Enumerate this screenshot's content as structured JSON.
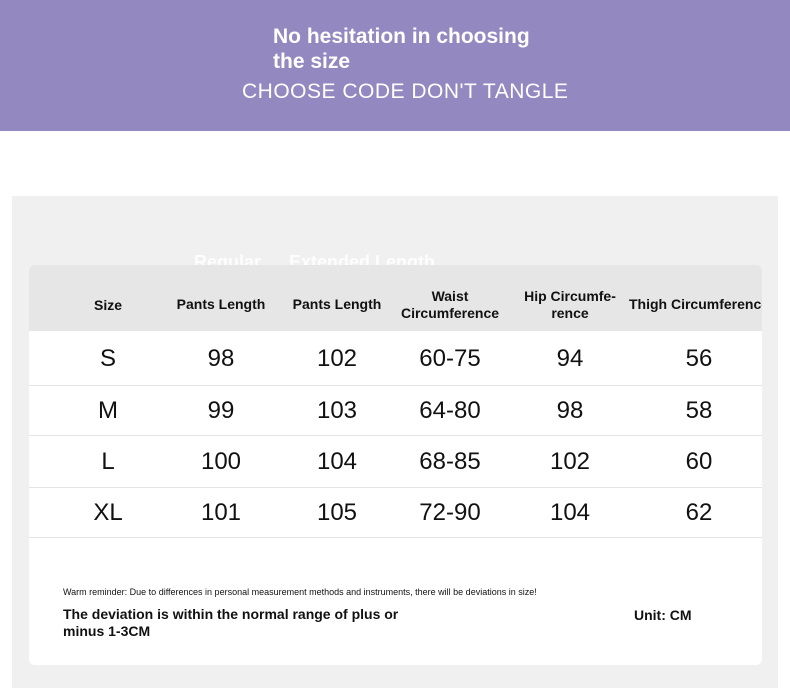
{
  "banner": {
    "title": "No hesitation in choosing the size",
    "subtitle": "CHOOSE CODE DON'T TANGLE",
    "color": "#9488c1"
  },
  "tabs": {
    "regular": "Regular",
    "extended": "Extended Length"
  },
  "table": {
    "headers": [
      "Size",
      "Pants Length",
      "Pants Length",
      "Waist Circumference",
      "Hip Circumfe-rence",
      "Thigh Circumference"
    ],
    "rows": [
      [
        "S",
        "98",
        "102",
        "60-75",
        "94",
        "56"
      ],
      [
        "M",
        "99",
        "103",
        "64-80",
        "98",
        "58"
      ],
      [
        "L",
        "100",
        "104",
        "68-85",
        "102",
        "60"
      ],
      [
        "XL",
        "101",
        "105",
        "72-90",
        "104",
        "62"
      ]
    ]
  },
  "notes": {
    "reminder": "Warm reminder: Due to differences in personal measurement methods and instruments, there will be deviations in size!",
    "deviation": "The deviation is within the normal range of plus or minus 1-3CM",
    "unit": "Unit: CM"
  }
}
